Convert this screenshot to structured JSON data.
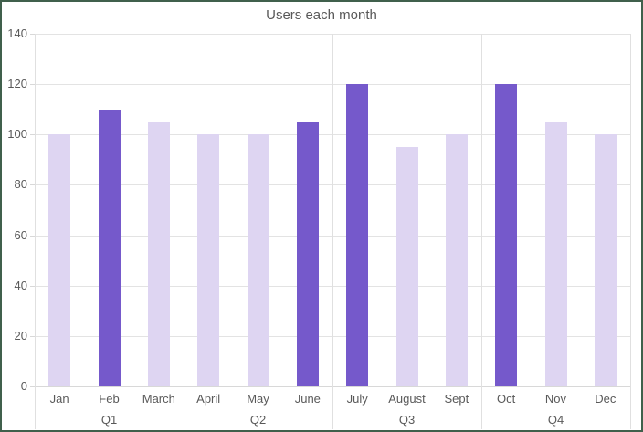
{
  "chart_data": {
    "type": "bar",
    "title": "Users each month",
    "categories": [
      "Jan",
      "Feb",
      "March",
      "April",
      "May",
      "June",
      "July",
      "August",
      "Sept",
      "Oct",
      "Nov",
      "Dec"
    ],
    "values": [
      100,
      110,
      105,
      100,
      100,
      105,
      120,
      95,
      100,
      120,
      105,
      100
    ],
    "emphasized": [
      false,
      true,
      false,
      false,
      false,
      true,
      true,
      false,
      false,
      true,
      false,
      false
    ],
    "group_labels": [
      "Q1",
      "Q2",
      "Q3",
      "Q4"
    ],
    "months_per_group": 3,
    "xlabel": "",
    "ylabel": "",
    "ylim": [
      0,
      140
    ],
    "yticks": [
      0,
      20,
      40,
      60,
      80,
      100,
      120,
      140
    ],
    "grid": true,
    "legend_position": "none",
    "colors": {
      "bar_default": "#ded5f2",
      "bar_emphasis": "#7559cb",
      "grid": "#e3e3e3",
      "axis": "#d8d8d8",
      "text": "#595959",
      "frame_border": "#40604c"
    }
  }
}
